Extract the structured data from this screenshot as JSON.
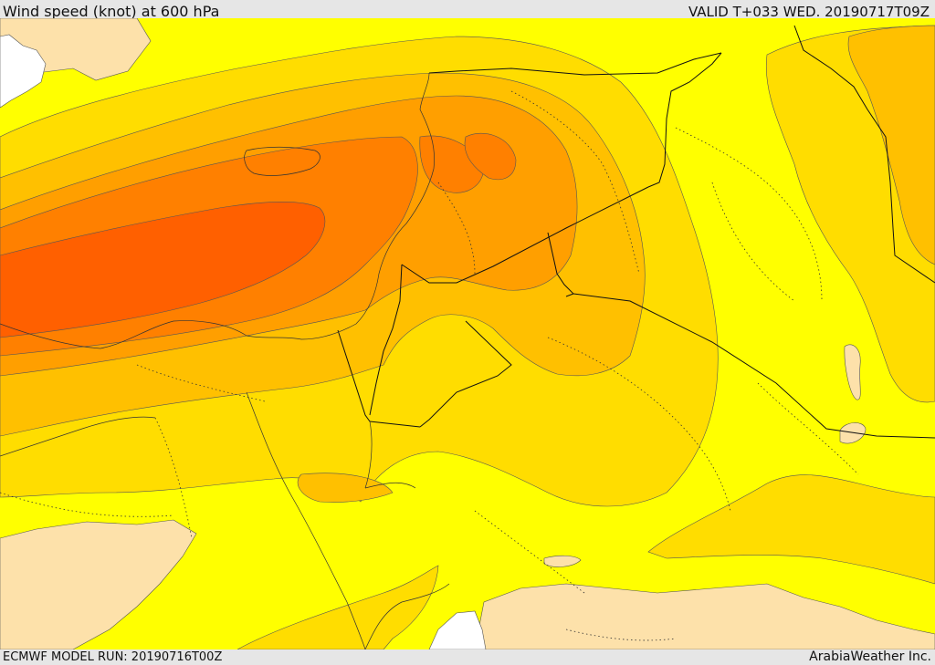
{
  "header": {
    "title": "Wind speed (knot) at 600 hPa",
    "valid": "VALID T+033 WED. 20190717T09Z"
  },
  "footer": {
    "model_run": "ECMWF MODEL RUN: 20190716T00Z",
    "credit": "ArabiaWeather Inc."
  },
  "colors": {
    "very_low": "#fde1aa",
    "low": "#ffff00",
    "moderate": "#ffdd00",
    "elevated": "#ffc000",
    "high": "#ff9f00",
    "very_high": "#ff8000",
    "extreme": "#ff6000",
    "sea_white": "#ffffff"
  }
}
